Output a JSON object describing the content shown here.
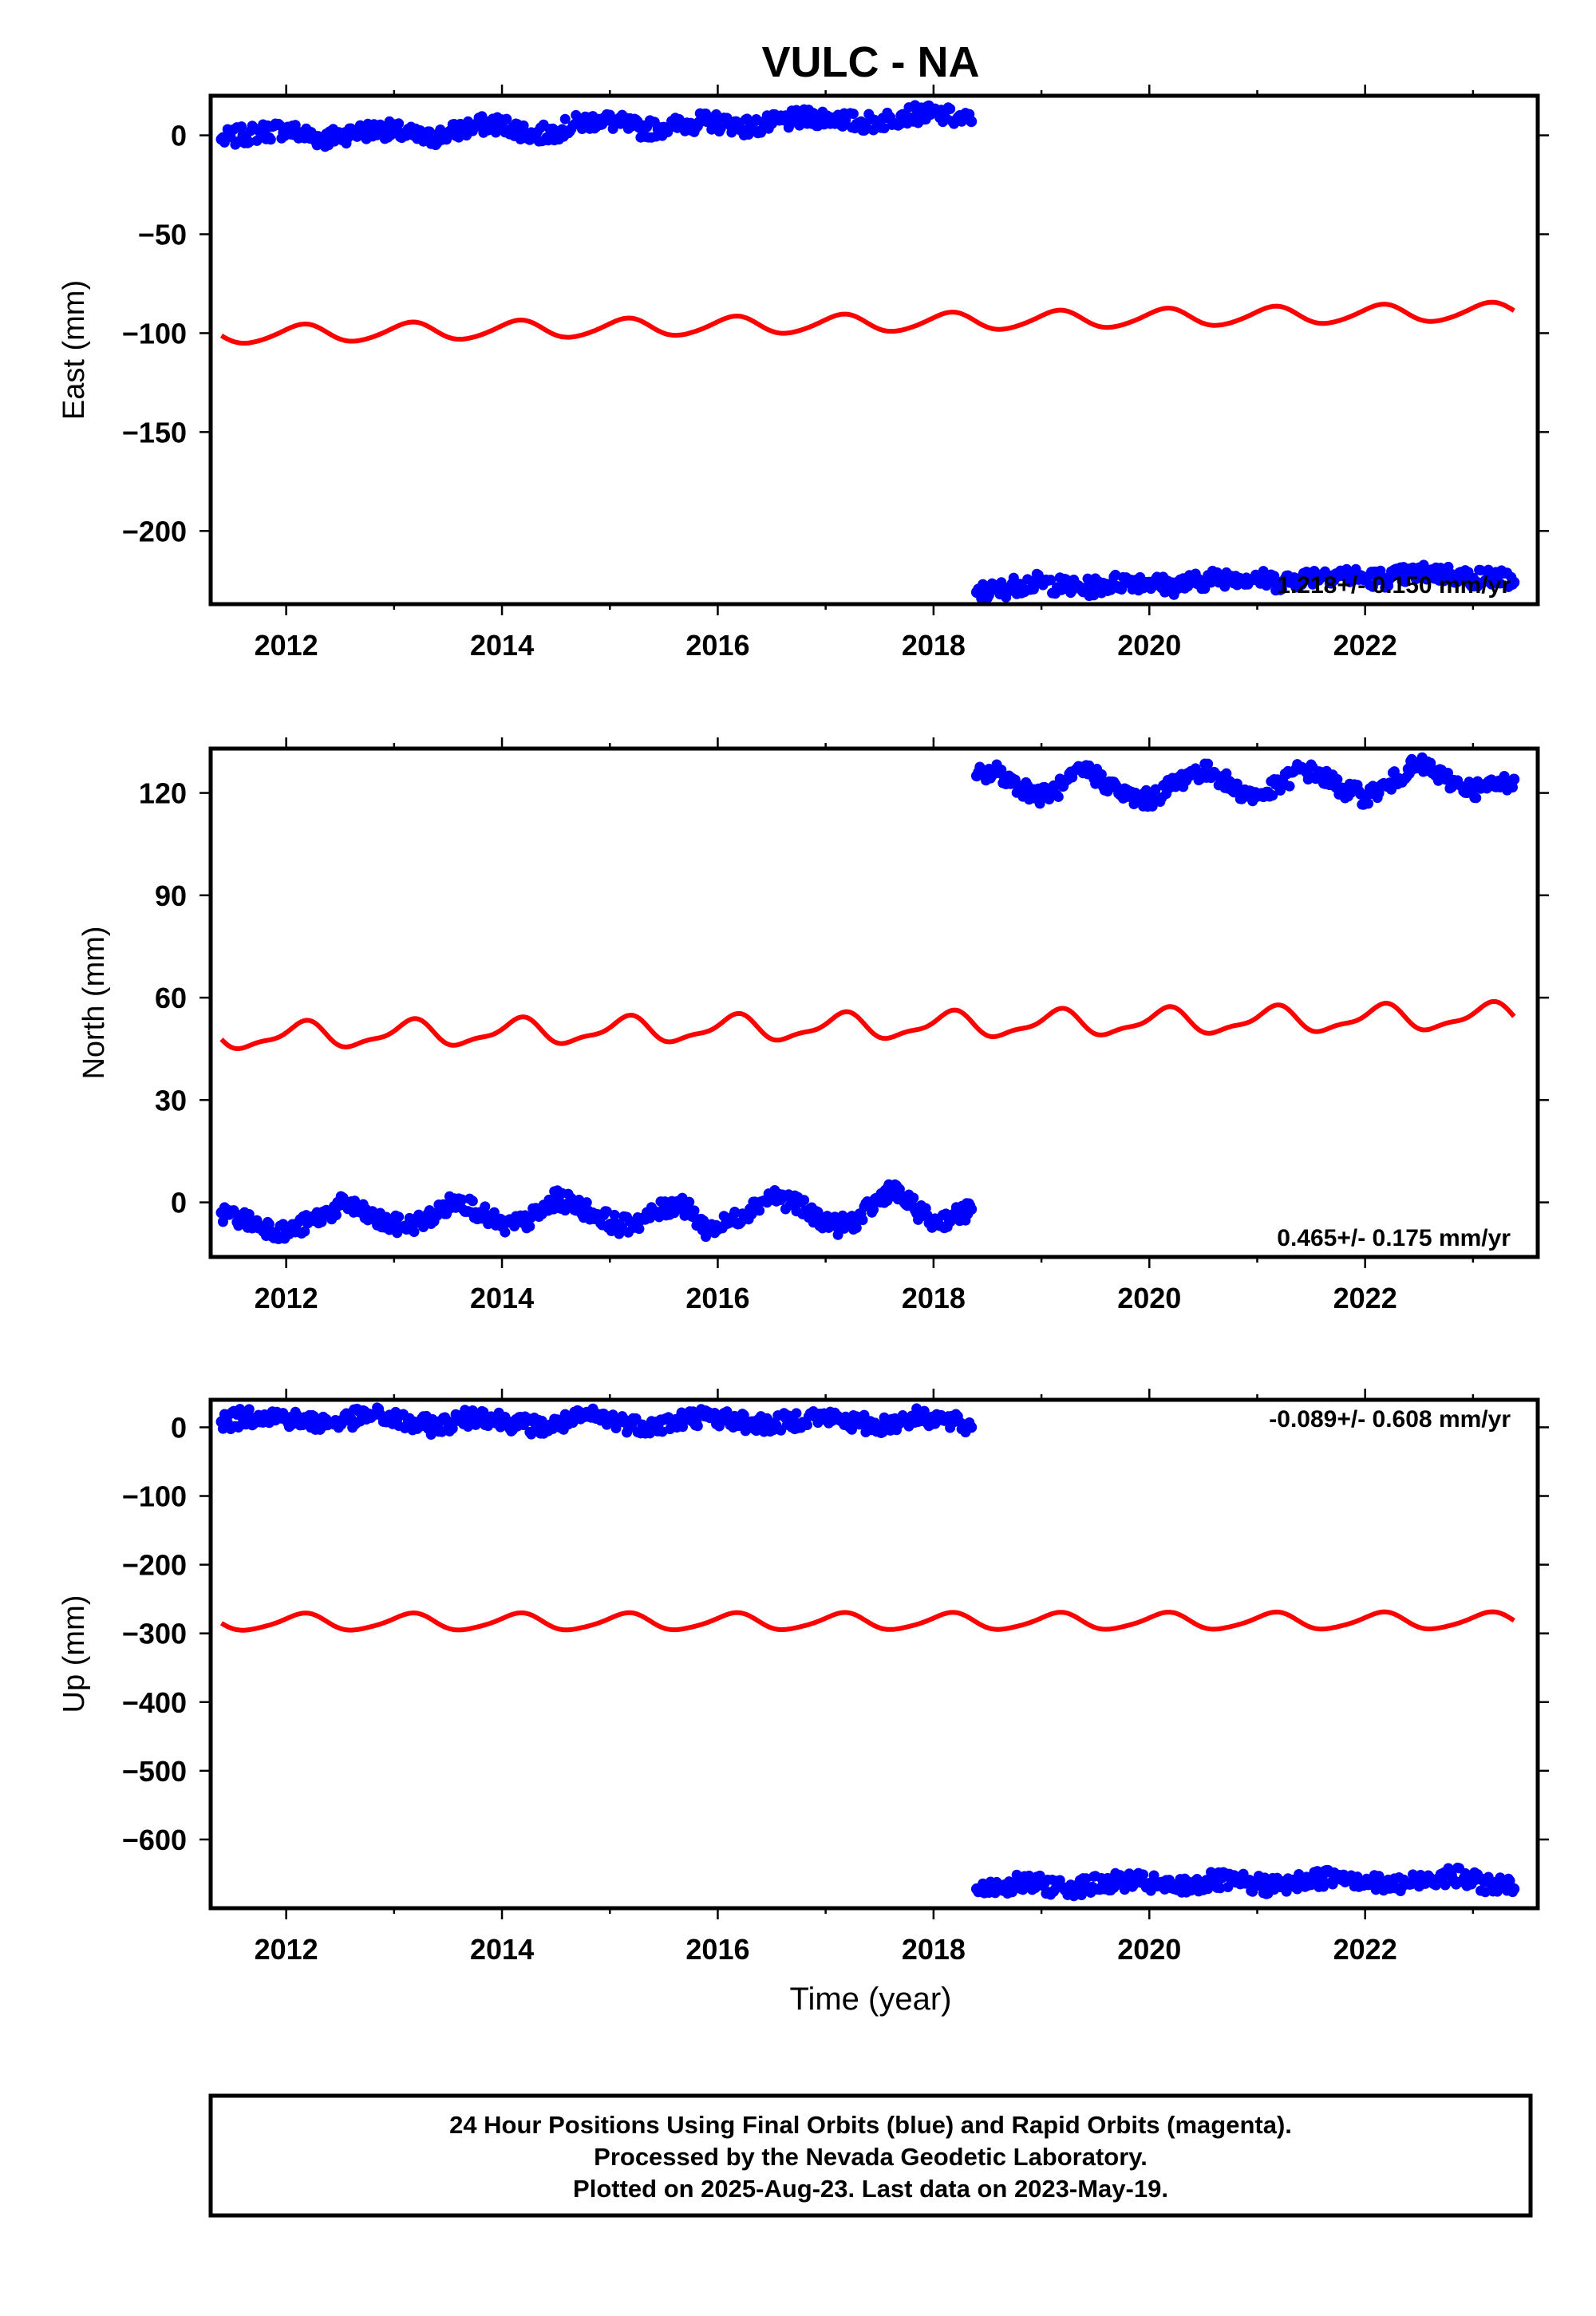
{
  "colors": {
    "observed": "#0000ff",
    "model": "#ff0000",
    "frame": "#000000"
  },
  "chart_data": {
    "title": "VULC - NA",
    "xlabel": "Time (year)",
    "xlim": [
      2011.3,
      2023.6
    ],
    "xticks": [
      2012,
      2014,
      2016,
      2018,
      2020,
      2022
    ],
    "xticklabels": [
      "2012",
      "2014",
      "2016",
      "2018",
      "2020",
      "2022"
    ],
    "panels": [
      {
        "type": "scatter",
        "component": "east",
        "ylabel": "East (mm)",
        "ylim": [
          -237,
          20
        ],
        "yticks": [
          0,
          -50,
          -100,
          -150,
          -200
        ],
        "yticklabels": [
          "0",
          "−50",
          "−100",
          "−150",
          "−200"
        ],
        "rate_text": "1.218+/- 0.150 mm/yr",
        "rate_position": "bottom-right",
        "series": [
          {
            "role": "observed",
            "color": "#0000ff",
            "points": [
              [
                2011.4,
                -2
              ],
              [
                2011.6,
                0
              ],
              [
                2011.8,
                2
              ],
              [
                2012.0,
                3
              ],
              [
                2012.2,
                0
              ],
              [
                2012.35,
                -2
              ],
              [
                2012.5,
                0
              ],
              [
                2012.7,
                2
              ],
              [
                2012.9,
                3
              ],
              [
                2013.1,
                1
              ],
              [
                2013.3,
                -2
              ],
              [
                2013.5,
                1
              ],
              [
                2013.7,
                4
              ],
              [
                2013.9,
                6
              ],
              [
                2014.1,
                4
              ],
              [
                2014.3,
                0
              ],
              [
                2014.5,
                2
              ],
              [
                2014.7,
                6
              ],
              [
                2014.9,
                8
              ],
              [
                2015.1,
                6
              ],
              [
                2015.3,
                3
              ],
              [
                2015.5,
                4
              ],
              [
                2015.75,
                6
              ],
              [
                2015.9,
                7
              ],
              [
                2016.1,
                6
              ],
              [
                2016.3,
                4
              ],
              [
                2016.5,
                6
              ],
              [
                2016.7,
                8
              ],
              [
                2016.9,
                9
              ],
              [
                2017.1,
                9
              ],
              [
                2017.3,
                6
              ],
              [
                2017.5,
                7
              ],
              [
                2017.7,
                10
              ],
              [
                2017.9,
                11
              ],
              [
                2018.1,
                10
              ],
              [
                2018.35,
                7
              ],
              [
                2018.4,
                -231
              ],
              [
                2018.6,
                -230
              ],
              [
                2018.8,
                -227
              ],
              [
                2019.0,
                -226
              ],
              [
                2019.2,
                -228
              ],
              [
                2019.4,
                -229
              ],
              [
                2019.6,
                -227
              ],
              [
                2019.8,
                -225
              ],
              [
                2020.0,
                -226
              ],
              [
                2020.2,
                -228
              ],
              [
                2020.4,
                -226
              ],
              [
                2020.6,
                -224
              ],
              [
                2020.8,
                -223
              ],
              [
                2021.0,
                -224
              ],
              [
                2021.2,
                -226
              ],
              [
                2021.4,
                -224
              ],
              [
                2021.6,
                -222
              ],
              [
                2021.8,
                -222
              ],
              [
                2022.0,
                -224
              ],
              [
                2022.2,
                -224
              ],
              [
                2022.4,
                -222
              ],
              [
                2022.6,
                -221
              ],
              [
                2022.8,
                -222
              ],
              [
                2023.0,
                -224
              ],
              [
                2023.2,
                -223
              ],
              [
                2023.38,
                -226
              ]
            ]
          },
          {
            "role": "model",
            "color": "#ff0000",
            "start": 2011.4,
            "end": 2023.38,
            "y_at_start": -101,
            "y_at_end": -89,
            "annual_amplitude": 4.5,
            "semiannual_amplitude": 0.5
          }
        ]
      },
      {
        "type": "scatter",
        "component": "north",
        "ylabel": "North (mm)",
        "ylim": [
          -16,
          133
        ],
        "yticks": [
          120,
          90,
          60,
          30,
          0
        ],
        "yticklabels": [
          "120",
          "90",
          "60",
          "30",
          "0"
        ],
        "rate_text": "0.465+/- 0.175 mm/yr",
        "rate_position": "bottom-right",
        "series": [
          {
            "role": "observed",
            "color": "#0000ff",
            "points": [
              [
                2011.4,
                -3
              ],
              [
                2011.6,
                -5
              ],
              [
                2011.8,
                -7
              ],
              [
                2012.0,
                -9
              ],
              [
                2012.2,
                -6
              ],
              [
                2012.4,
                -3
              ],
              [
                2012.55,
                0
              ],
              [
                2012.7,
                -3
              ],
              [
                2012.9,
                -6
              ],
              [
                2013.1,
                -7
              ],
              [
                2013.3,
                -5
              ],
              [
                2013.5,
                -1
              ],
              [
                2013.6,
                1
              ],
              [
                2013.8,
                -3
              ],
              [
                2014.0,
                -7
              ],
              [
                2014.2,
                -6
              ],
              [
                2014.4,
                -2
              ],
              [
                2014.5,
                1
              ],
              [
                2014.7,
                -1
              ],
              [
                2014.9,
                -4
              ],
              [
                2015.1,
                -7
              ],
              [
                2015.3,
                -5
              ],
              [
                2015.5,
                -2
              ],
              [
                2015.65,
                0
              ],
              [
                2015.75,
                -3
              ],
              [
                2015.9,
                -8
              ],
              [
                2016.1,
                -6
              ],
              [
                2016.3,
                -2
              ],
              [
                2016.5,
                2
              ],
              [
                2016.7,
                0
              ],
              [
                2016.9,
                -4
              ],
              [
                2017.1,
                -7
              ],
              [
                2017.3,
                -5
              ],
              [
                2017.5,
                1
              ],
              [
                2017.6,
                4
              ],
              [
                2017.8,
                -1
              ],
              [
                2018.0,
                -6
              ],
              [
                2018.2,
                -4
              ],
              [
                2018.35,
                -2
              ],
              [
                2018.4,
                125
              ],
              [
                2018.6,
                126
              ],
              [
                2018.8,
                122
              ],
              [
                2019.0,
                119
              ],
              [
                2019.2,
                122
              ],
              [
                2019.4,
                127
              ],
              [
                2019.6,
                123
              ],
              [
                2019.8,
                119
              ],
              [
                2020.0,
                118
              ],
              [
                2020.2,
                122
              ],
              [
                2020.4,
                126
              ],
              [
                2020.6,
                126
              ],
              [
                2020.8,
                121
              ],
              [
                2021.0,
                119
              ],
              [
                2021.2,
                122
              ],
              [
                2021.4,
                127
              ],
              [
                2021.6,
                125
              ],
              [
                2021.8,
                121
              ],
              [
                2022.0,
                119
              ],
              [
                2022.2,
                122
              ],
              [
                2022.4,
                127
              ],
              [
                2022.55,
                128
              ],
              [
                2022.75,
                124
              ],
              [
                2023.0,
                121
              ],
              [
                2023.2,
                122
              ],
              [
                2023.38,
                124
              ]
            ]
          },
          {
            "role": "model",
            "color": "#ff0000",
            "start": 2011.4,
            "end": 2023.38,
            "y_at_start": 48.5,
            "y_at_end": 54.5,
            "annual_amplitude": 3.5,
            "semiannual_amplitude": 1.2
          }
        ]
      },
      {
        "type": "scatter",
        "component": "up",
        "ylabel": "Up (mm)",
        "ylim": [
          -700,
          40
        ],
        "yticks": [
          0,
          -100,
          -200,
          -300,
          -400,
          -500,
          -600
        ],
        "yticklabels": [
          "0",
          "−100",
          "−200",
          "−300",
          "−400",
          "−500",
          "−600"
        ],
        "rate_text": "-0.089+/- 0.608 mm/yr",
        "rate_position": "top-right",
        "series": [
          {
            "role": "observed",
            "color": "#0000ff",
            "points": [
              [
                2011.4,
                8
              ],
              [
                2011.6,
                14
              ],
              [
                2011.8,
                18
              ],
              [
                2012.0,
                14
              ],
              [
                2012.2,
                8
              ],
              [
                2012.4,
                6
              ],
              [
                2012.6,
                12
              ],
              [
                2012.8,
                18
              ],
              [
                2013.0,
                12
              ],
              [
                2013.2,
                4
              ],
              [
                2013.4,
                2
              ],
              [
                2013.6,
                10
              ],
              [
                2013.8,
                18
              ],
              [
                2014.0,
                10
              ],
              [
                2014.2,
                4
              ],
              [
                2014.4,
                0
              ],
              [
                2014.6,
                8
              ],
              [
                2014.8,
                16
              ],
              [
                2015.0,
                12
              ],
              [
                2015.2,
                4
              ],
              [
                2015.4,
                2
              ],
              [
                2015.6,
                8
              ],
              [
                2015.75,
                14
              ],
              [
                2015.9,
                16
              ],
              [
                2016.1,
                12
              ],
              [
                2016.3,
                6
              ],
              [
                2016.5,
                4
              ],
              [
                2016.7,
                10
              ],
              [
                2016.9,
                16
              ],
              [
                2017.1,
                12
              ],
              [
                2017.3,
                6
              ],
              [
                2017.5,
                2
              ],
              [
                2017.7,
                10
              ],
              [
                2017.9,
                16
              ],
              [
                2018.1,
                10
              ],
              [
                2018.35,
                0
              ],
              [
                2018.4,
                -672
              ],
              [
                2018.6,
                -668
              ],
              [
                2018.8,
                -664
              ],
              [
                2019.0,
                -666
              ],
              [
                2019.2,
                -670
              ],
              [
                2019.4,
                -668
              ],
              [
                2019.6,
                -664
              ],
              [
                2019.8,
                -660
              ],
              [
                2020.0,
                -664
              ],
              [
                2020.2,
                -670
              ],
              [
                2020.4,
                -666
              ],
              [
                2020.6,
                -660
              ],
              [
                2020.8,
                -662
              ],
              [
                2021.0,
                -666
              ],
              [
                2021.2,
                -668
              ],
              [
                2021.4,
                -662
              ],
              [
                2021.6,
                -656
              ],
              [
                2021.8,
                -652
              ],
              [
                2022.0,
                -660
              ],
              [
                2022.2,
                -668
              ],
              [
                2022.4,
                -664
              ],
              [
                2022.6,
                -656
              ],
              [
                2022.8,
                -652
              ],
              [
                2023.0,
                -660
              ],
              [
                2023.2,
                -666
              ],
              [
                2023.38,
                -672
              ]
            ]
          },
          {
            "role": "model",
            "color": "#ff0000",
            "start": 2011.4,
            "end": 2023.38,
            "y_at_start": -284,
            "y_at_end": -282,
            "annual_amplitude": 12,
            "semiannual_amplitude": 2
          }
        ]
      }
    ]
  },
  "footer": {
    "line1": "24 Hour Positions Using Final Orbits (blue) and Rapid Orbits (magenta).",
    "line2": "Processed by the Nevada Geodetic Laboratory.",
    "line3": "Plotted on 2025-Aug-23. Last data on 2023-May-19."
  }
}
